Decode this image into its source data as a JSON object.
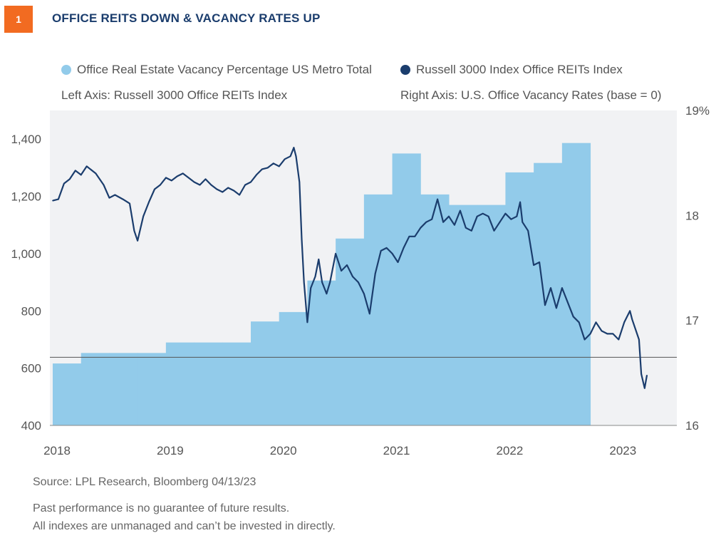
{
  "figure_number": "1",
  "title": "OFFICE REITS DOWN & VACANCY RATES UP",
  "legend": {
    "vacancy": "Office Real Estate Vacancy Percentage US Metro Total",
    "reits": "Russell 3000 Index Office REITs Index"
  },
  "axis_notes": {
    "left": "Left Axis: Russell 3000 Office REITs Index",
    "right": "Right Axis: U.S. Office Vacancy Rates (base = 0)"
  },
  "footer": {
    "source": "Source: LPL Research, Bloomberg  04/13/23",
    "disclaimer1": "Past performance is no guarantee of future results.",
    "disclaimer2": "All indexes are unmanaged and can’t be invested in directly."
  },
  "colors": {
    "accent": "#f26b21",
    "title": "#1b3d6d",
    "vacancy_fill": "#92cbea",
    "reits_line": "#1b3d6d",
    "plot_bg": "#f1f2f4"
  },
  "chart_data": {
    "type": "area",
    "x_ticks": [
      "2018",
      "2019",
      "2020",
      "2021",
      "2022",
      "2023"
    ],
    "left_axis": {
      "ticks": [
        "1,400",
        "1,200",
        "1,000",
        "800",
        "600",
        "400"
      ],
      "range": [
        400,
        1500
      ]
    },
    "right_axis": {
      "ticks": [
        "19%",
        "18",
        "17",
        "16"
      ],
      "range": [
        16,
        19
      ]
    },
    "x_range": [
      2018.0,
      2023.25
    ],
    "reference_line_left_value": 638,
    "series": [
      {
        "name": "Office Real Estate Vacancy Percentage US Metro Total",
        "axis": "right",
        "kind": "step-area",
        "points": [
          [
            2018.0,
            16.59
          ],
          [
            2018.25,
            16.69
          ],
          [
            2018.5,
            16.69
          ],
          [
            2018.75,
            16.69
          ],
          [
            2019.0,
            16.79
          ],
          [
            2019.25,
            16.79
          ],
          [
            2019.5,
            16.79
          ],
          [
            2019.75,
            16.99
          ],
          [
            2020.0,
            17.08
          ],
          [
            2020.25,
            17.38
          ],
          [
            2020.5,
            17.78
          ],
          [
            2020.75,
            18.2
          ],
          [
            2021.0,
            18.59
          ],
          [
            2021.25,
            18.2
          ],
          [
            2021.5,
            18.1
          ],
          [
            2021.75,
            18.1
          ],
          [
            2022.0,
            18.41
          ],
          [
            2022.25,
            18.5
          ],
          [
            2022.5,
            18.69
          ]
        ],
        "end": 2022.75
      },
      {
        "name": "Russell 3000 Index Office REITs Index",
        "axis": "left",
        "kind": "line",
        "points": [
          [
            2018.0,
            1185
          ],
          [
            2018.05,
            1190
          ],
          [
            2018.1,
            1245
          ],
          [
            2018.15,
            1260
          ],
          [
            2018.2,
            1290
          ],
          [
            2018.25,
            1275
          ],
          [
            2018.3,
            1305
          ],
          [
            2018.38,
            1280
          ],
          [
            2018.45,
            1240
          ],
          [
            2018.5,
            1195
          ],
          [
            2018.55,
            1205
          ],
          [
            2018.62,
            1190
          ],
          [
            2018.68,
            1175
          ],
          [
            2018.72,
            1080
          ],
          [
            2018.75,
            1045
          ],
          [
            2018.8,
            1130
          ],
          [
            2018.85,
            1180
          ],
          [
            2018.9,
            1225
          ],
          [
            2018.95,
            1240
          ],
          [
            2019.0,
            1265
          ],
          [
            2019.05,
            1255
          ],
          [
            2019.1,
            1270
          ],
          [
            2019.15,
            1280
          ],
          [
            2019.2,
            1265
          ],
          [
            2019.25,
            1250
          ],
          [
            2019.3,
            1240
          ],
          [
            2019.35,
            1260
          ],
          [
            2019.4,
            1240
          ],
          [
            2019.45,
            1225
          ],
          [
            2019.5,
            1215
          ],
          [
            2019.55,
            1230
          ],
          [
            2019.6,
            1220
          ],
          [
            2019.65,
            1205
          ],
          [
            2019.7,
            1240
          ],
          [
            2019.75,
            1250
          ],
          [
            2019.8,
            1275
          ],
          [
            2019.85,
            1295
          ],
          [
            2019.9,
            1300
          ],
          [
            2019.95,
            1315
          ],
          [
            2020.0,
            1305
          ],
          [
            2020.05,
            1330
          ],
          [
            2020.1,
            1340
          ],
          [
            2020.13,
            1370
          ],
          [
            2020.15,
            1340
          ],
          [
            2020.18,
            1250
          ],
          [
            2020.2,
            1050
          ],
          [
            2020.22,
            900
          ],
          [
            2020.25,
            760
          ],
          [
            2020.28,
            880
          ],
          [
            2020.32,
            920
          ],
          [
            2020.35,
            980
          ],
          [
            2020.38,
            900
          ],
          [
            2020.42,
            860
          ],
          [
            2020.45,
            900
          ],
          [
            2020.5,
            1000
          ],
          [
            2020.55,
            940
          ],
          [
            2020.6,
            960
          ],
          [
            2020.65,
            920
          ],
          [
            2020.7,
            900
          ],
          [
            2020.75,
            860
          ],
          [
            2020.8,
            790
          ],
          [
            2020.85,
            930
          ],
          [
            2020.9,
            1010
          ],
          [
            2020.95,
            1020
          ],
          [
            2021.0,
            1000
          ],
          [
            2021.05,
            970
          ],
          [
            2021.1,
            1020
          ],
          [
            2021.15,
            1060
          ],
          [
            2021.2,
            1060
          ],
          [
            2021.25,
            1090
          ],
          [
            2021.3,
            1110
          ],
          [
            2021.35,
            1120
          ],
          [
            2021.4,
            1190
          ],
          [
            2021.45,
            1110
          ],
          [
            2021.5,
            1130
          ],
          [
            2021.55,
            1100
          ],
          [
            2021.6,
            1150
          ],
          [
            2021.65,
            1090
          ],
          [
            2021.7,
            1080
          ],
          [
            2021.75,
            1130
          ],
          [
            2021.8,
            1140
          ],
          [
            2021.85,
            1130
          ],
          [
            2021.9,
            1080
          ],
          [
            2021.95,
            1110
          ],
          [
            2022.0,
            1140
          ],
          [
            2022.05,
            1120
          ],
          [
            2022.1,
            1130
          ],
          [
            2022.13,
            1180
          ],
          [
            2022.15,
            1110
          ],
          [
            2022.2,
            1080
          ],
          [
            2022.25,
            960
          ],
          [
            2022.3,
            970
          ],
          [
            2022.35,
            820
          ],
          [
            2022.4,
            880
          ],
          [
            2022.45,
            810
          ],
          [
            2022.5,
            880
          ],
          [
            2022.55,
            830
          ],
          [
            2022.6,
            780
          ],
          [
            2022.65,
            760
          ],
          [
            2022.7,
            700
          ],
          [
            2022.75,
            720
          ],
          [
            2022.8,
            760
          ],
          [
            2022.85,
            730
          ],
          [
            2022.9,
            720
          ],
          [
            2022.95,
            720
          ],
          [
            2023.0,
            700
          ],
          [
            2023.05,
            760
          ],
          [
            2023.1,
            800
          ],
          [
            2023.12,
            770
          ],
          [
            2023.15,
            735
          ],
          [
            2023.18,
            700
          ],
          [
            2023.2,
            580
          ],
          [
            2023.23,
            530
          ],
          [
            2023.25,
            575
          ]
        ]
      }
    ]
  }
}
